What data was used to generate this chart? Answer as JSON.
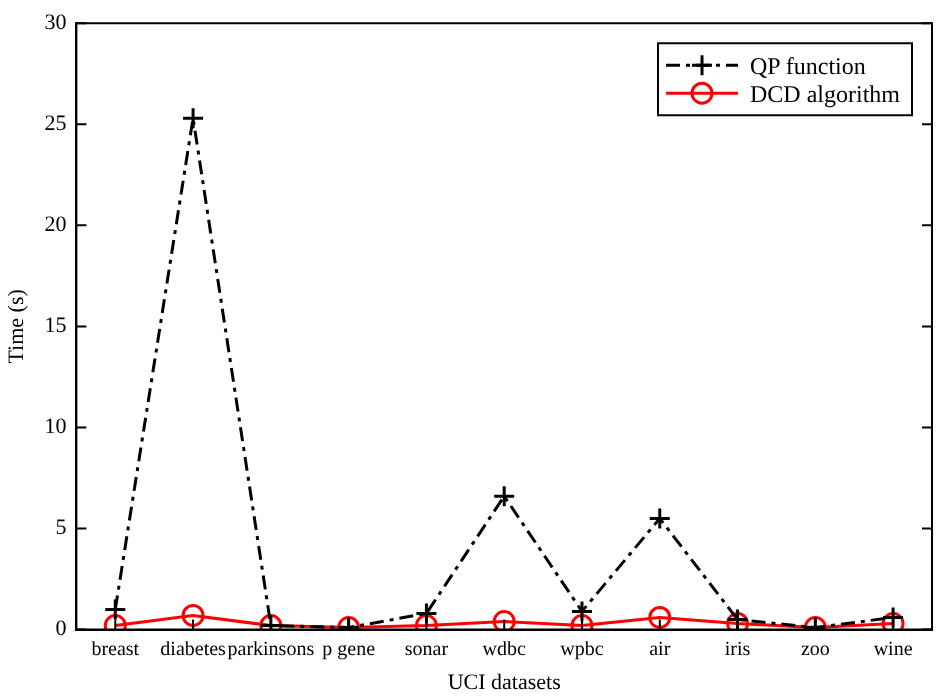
{
  "chart_data": {
    "type": "line",
    "xlabel": "UCI datasets",
    "ylabel": "Time (s)",
    "categories": [
      "breast",
      "diabetes",
      "parkinsons",
      "p gene",
      "sonar",
      "wdbc",
      "wpbc",
      "air",
      "iris",
      "zoo",
      "wine"
    ],
    "series": [
      {
        "name": "QP function",
        "color": "#000000",
        "marker": "cross",
        "line_style": "dashed",
        "values": [
          1.0,
          25.3,
          0.2,
          0.1,
          0.8,
          6.6,
          0.9,
          5.5,
          0.5,
          0.1,
          0.6
        ]
      },
      {
        "name": "DCD algorithm",
        "color": "#ff0000",
        "marker": "circle",
        "line_style": "solid",
        "values": [
          0.2,
          0.7,
          0.2,
          0.1,
          0.2,
          0.4,
          0.2,
          0.6,
          0.3,
          0.1,
          0.3
        ]
      }
    ],
    "ylim": [
      0,
      30
    ],
    "yticks": [
      0,
      5,
      10,
      15,
      20,
      25,
      30
    ],
    "grid": false,
    "legend": "top right"
  }
}
